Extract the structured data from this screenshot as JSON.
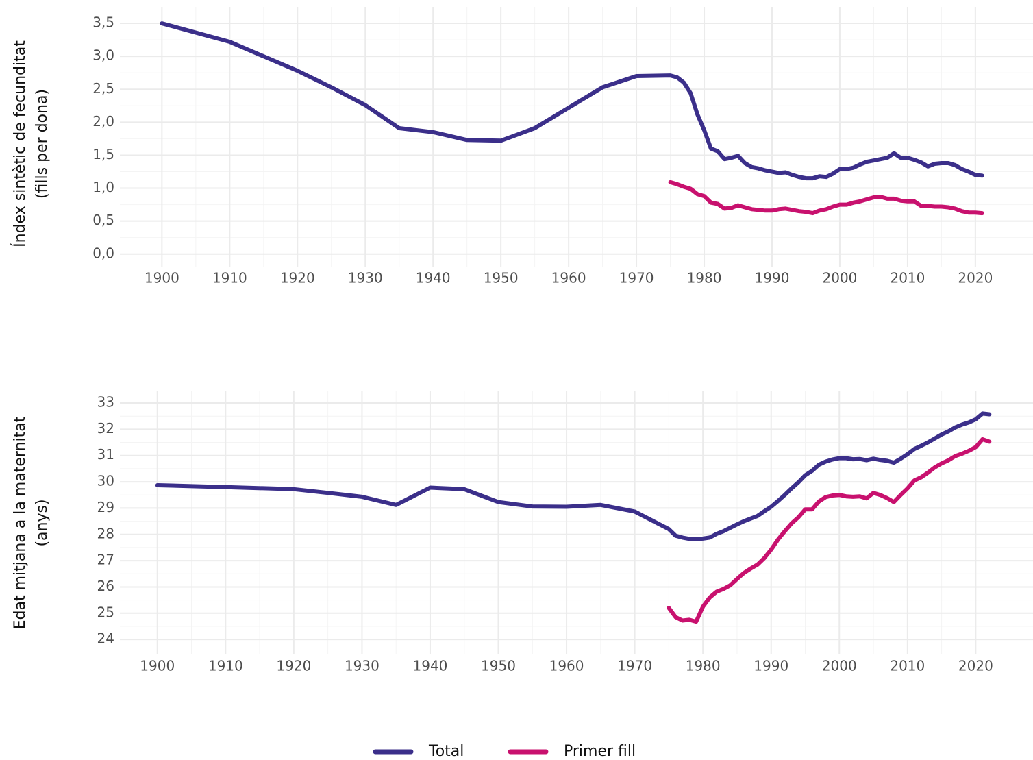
{
  "chart_data": [
    {
      "type": "line",
      "ylabel": [
        "Índex sintètic de fecunditat",
        "(fills per dona)"
      ],
      "xlim": [
        1893.8,
        2028.5
      ],
      "ylim": [
        -0.2,
        3.75
      ],
      "xticks": [
        1900,
        1910,
        1920,
        1930,
        1940,
        1950,
        1960,
        1970,
        1980,
        1990,
        2000,
        2010,
        2020
      ],
      "yticks": [
        {
          "value": 0,
          "label": "0,0"
        },
        {
          "value": 0.5,
          "label": "0,5"
        },
        {
          "value": 1,
          "label": "1,0"
        },
        {
          "value": 1.5,
          "label": "1,5"
        },
        {
          "value": 2,
          "label": "2,0"
        },
        {
          "value": 2.5,
          "label": "2,5"
        },
        {
          "value": 3,
          "label": "3,0"
        },
        {
          "value": 3.5,
          "label": "3,5"
        }
      ],
      "grid": true,
      "series": [
        {
          "name": "Total",
          "color": "#3b2f8a",
          "x": [
            1900,
            1910,
            1920,
            1925,
            1930,
            1935,
            1940,
            1945,
            1950,
            1955,
            1960,
            1965,
            1970,
            1975,
            1976,
            1977,
            1978,
            1979,
            1980,
            1981,
            1982,
            1983,
            1984,
            1985,
            1986,
            1987,
            1988,
            1989,
            1990,
            1991,
            1992,
            1993,
            1994,
            1995,
            1996,
            1997,
            1998,
            1999,
            2000,
            2001,
            2002,
            2003,
            2004,
            2005,
            2006,
            2007,
            2008,
            2009,
            2010,
            2011,
            2012,
            2013,
            2014,
            2015,
            2016,
            2017,
            2018,
            2019,
            2020,
            2021
          ],
          "values": [
            3.5,
            3.22,
            2.78,
            2.53,
            2.26,
            1.91,
            1.85,
            1.73,
            1.72,
            1.91,
            2.22,
            2.53,
            2.7,
            2.71,
            2.68,
            2.6,
            2.44,
            2.12,
            1.88,
            1.6,
            1.56,
            1.44,
            1.46,
            1.49,
            1.38,
            1.32,
            1.3,
            1.27,
            1.25,
            1.23,
            1.24,
            1.2,
            1.17,
            1.15,
            1.15,
            1.18,
            1.17,
            1.22,
            1.29,
            1.29,
            1.31,
            1.36,
            1.4,
            1.42,
            1.44,
            1.46,
            1.53,
            1.46,
            1.46,
            1.43,
            1.39,
            1.33,
            1.37,
            1.38,
            1.38,
            1.35,
            1.29,
            1.25,
            1.2,
            1.19
          ]
        },
        {
          "name": "Primer fill",
          "color": "#c8116e",
          "x": [
            1975,
            1976,
            1977,
            1978,
            1979,
            1980,
            1981,
            1982,
            1983,
            1984,
            1985,
            1986,
            1987,
            1988,
            1989,
            1990,
            1991,
            1992,
            1993,
            1994,
            1995,
            1996,
            1997,
            1998,
            1999,
            2000,
            2001,
            2002,
            2003,
            2004,
            2005,
            2006,
            2007,
            2008,
            2009,
            2010,
            2011,
            2012,
            2013,
            2014,
            2015,
            2016,
            2017,
            2018,
            2019,
            2020,
            2021
          ],
          "values": [
            1.09,
            1.06,
            1.02,
            0.99,
            0.91,
            0.88,
            0.78,
            0.76,
            0.69,
            0.7,
            0.74,
            0.71,
            0.68,
            0.67,
            0.66,
            0.66,
            0.68,
            0.69,
            0.67,
            0.65,
            0.64,
            0.62,
            0.66,
            0.68,
            0.72,
            0.75,
            0.75,
            0.78,
            0.8,
            0.83,
            0.86,
            0.87,
            0.84,
            0.84,
            0.81,
            0.8,
            0.8,
            0.73,
            0.73,
            0.72,
            0.72,
            0.71,
            0.69,
            0.65,
            0.63,
            0.63,
            0.62
          ]
        }
      ]
    },
    {
      "type": "line",
      "ylabel": [
        "Edat mitjana a la maternitat",
        "(anys)"
      ],
      "xlim": [
        1894.5,
        2028.4
      ],
      "ylim": [
        23.43,
        33.47
      ],
      "xticks": [
        1900,
        1910,
        1920,
        1930,
        1940,
        1950,
        1960,
        1970,
        1980,
        1990,
        2000,
        2010,
        2020
      ],
      "yticks": [
        24,
        25,
        26,
        27,
        28,
        29,
        30,
        31,
        32,
        33
      ],
      "grid": true,
      "series": [
        {
          "name": "Total",
          "color": "#3b2f8a",
          "x": [
            1900,
            1910,
            1920,
            1925,
            1930,
            1935,
            1940,
            1945,
            1950,
            1955,
            1960,
            1965,
            1970,
            1975,
            1976,
            1977,
            1978,
            1979,
            1980,
            1981,
            1982,
            1983,
            1984,
            1985,
            1986,
            1987,
            1988,
            1989,
            1990,
            1991,
            1992,
            1993,
            1994,
            1995,
            1996,
            1997,
            1998,
            1999,
            2000,
            2001,
            2002,
            2003,
            2004,
            2005,
            2006,
            2007,
            2008,
            2009,
            2010,
            2011,
            2012,
            2013,
            2014,
            2015,
            2016,
            2017,
            2018,
            2019,
            2020,
            2021,
            2022
          ],
          "values": [
            29.87,
            29.8,
            29.72,
            29.58,
            29.43,
            29.12,
            29.78,
            29.72,
            29.23,
            29.06,
            29.05,
            29.12,
            28.87,
            28.2,
            27.95,
            27.88,
            27.83,
            27.82,
            27.84,
            27.88,
            28.02,
            28.12,
            28.25,
            28.38,
            28.5,
            28.6,
            28.7,
            28.88,
            29.05,
            29.27,
            29.5,
            29.75,
            29.98,
            30.25,
            30.42,
            30.65,
            30.77,
            30.85,
            30.9,
            30.9,
            30.86,
            30.87,
            30.82,
            30.88,
            30.83,
            30.8,
            30.73,
            30.88,
            31.05,
            31.25,
            31.37,
            31.5,
            31.65,
            31.8,
            31.92,
            32.07,
            32.18,
            32.26,
            32.38,
            32.6,
            32.57
          ]
        },
        {
          "name": "Primer fill",
          "color": "#c8116e",
          "x": [
            1975,
            1976,
            1977,
            1978,
            1979,
            1980,
            1981,
            1982,
            1983,
            1984,
            1985,
            1986,
            1987,
            1988,
            1989,
            1990,
            1991,
            1992,
            1993,
            1994,
            1995,
            1996,
            1997,
            1998,
            1999,
            2000,
            2001,
            2002,
            2003,
            2004,
            2005,
            2006,
            2007,
            2008,
            2009,
            2010,
            2011,
            2012,
            2013,
            2014,
            2015,
            2016,
            2017,
            2018,
            2019,
            2020,
            2021,
            2022
          ],
          "values": [
            25.2,
            24.85,
            24.72,
            24.75,
            24.68,
            25.25,
            25.6,
            25.82,
            25.92,
            26.06,
            26.3,
            26.53,
            26.7,
            26.85,
            27.1,
            27.42,
            27.8,
            28.12,
            28.42,
            28.65,
            28.95,
            28.95,
            29.25,
            29.42,
            29.48,
            29.5,
            29.45,
            29.43,
            29.45,
            29.37,
            29.58,
            29.5,
            29.38,
            29.23,
            29.5,
            29.75,
            30.05,
            30.17,
            30.35,
            30.55,
            30.7,
            30.82,
            30.98,
            31.07,
            31.18,
            31.32,
            31.62,
            31.53
          ]
        }
      ]
    }
  ]
}
